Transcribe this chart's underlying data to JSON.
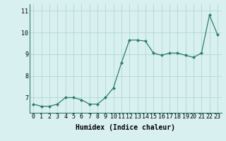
{
  "x": [
    0,
    1,
    2,
    3,
    4,
    5,
    6,
    7,
    8,
    9,
    10,
    11,
    12,
    13,
    14,
    15,
    16,
    17,
    18,
    19,
    20,
    21,
    22,
    23
  ],
  "y": [
    6.7,
    6.6,
    6.6,
    6.7,
    7.0,
    7.0,
    6.9,
    6.7,
    6.7,
    7.0,
    7.45,
    8.6,
    9.65,
    9.65,
    9.6,
    9.05,
    8.95,
    9.05,
    9.05,
    8.95,
    8.85,
    9.05,
    10.8,
    9.9
  ],
  "line_color": "#2e7d6e",
  "marker": "D",
  "marker_size": 2,
  "bg_color": "#d9f0f0",
  "grid_color": "#b0d8d8",
  "xlabel": "Humidex (Indice chaleur)",
  "ylim": [
    6.3,
    11.3
  ],
  "xlim": [
    -0.5,
    23.5
  ],
  "yticks": [
    7,
    8,
    9,
    10,
    11
  ],
  "xticks": [
    0,
    1,
    2,
    3,
    4,
    5,
    6,
    7,
    8,
    9,
    10,
    11,
    12,
    13,
    14,
    15,
    16,
    17,
    18,
    19,
    20,
    21,
    22,
    23
  ],
  "xlabel_fontsize": 7,
  "tick_fontsize": 6
}
